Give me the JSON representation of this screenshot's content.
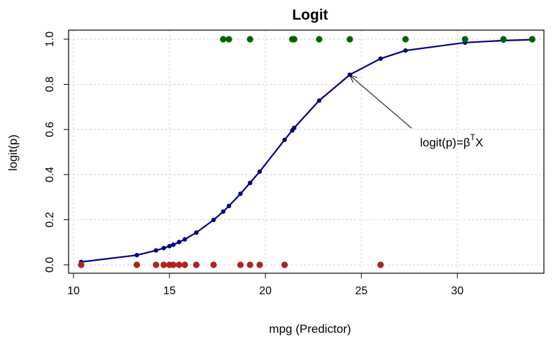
{
  "chart_data": {
    "type": "line",
    "title": "Logit",
    "xlabel": "mpg (Predictor)",
    "ylabel": "logit(p)",
    "xlim": [
      10,
      34
    ],
    "ylim": [
      0,
      1
    ],
    "x_ticks": [
      10,
      15,
      20,
      25,
      30
    ],
    "y_ticks": [
      0.0,
      0.2,
      0.4,
      0.6,
      0.8,
      1.0
    ],
    "x_tick_labels": [
      "10",
      "15",
      "20",
      "25",
      "30"
    ],
    "y_tick_labels": [
      "0.0",
      "0.2",
      "0.4",
      "0.6",
      "0.8",
      "1.0"
    ],
    "grid": true,
    "annotation": {
      "text_main": "logit(p)=β",
      "text_sup": "T",
      "text_tail": "X",
      "points_to": [
        24.4,
        0.84
      ]
    },
    "colors": {
      "curve": "#000080",
      "observed_1": "#006400",
      "observed_0": "#b22222",
      "grid": "#d3d3d3"
    },
    "series": [
      {
        "kind": "fitted-curve",
        "x": [
          10.4,
          13.3,
          14.3,
          14.7,
          15.0,
          15.2,
          15.5,
          15.8,
          16.4,
          17.3,
          17.8,
          18.1,
          18.7,
          19.2,
          19.7,
          21.0,
          21.4,
          21.5,
          22.8,
          24.4,
          26.0,
          27.3,
          30.4,
          32.4,
          33.9
        ],
        "y": [
          0.013,
          0.043,
          0.064,
          0.074,
          0.083,
          0.089,
          0.101,
          0.113,
          0.143,
          0.199,
          0.236,
          0.261,
          0.315,
          0.363,
          0.413,
          0.554,
          0.596,
          0.607,
          0.728,
          0.843,
          0.914,
          0.95,
          0.985,
          0.994,
          0.998
        ]
      },
      {
        "kind": "observed",
        "y_value": 1,
        "x": [
          17.8,
          18.1,
          19.2,
          21.4,
          21.5,
          22.8,
          24.4,
          27.3,
          30.4,
          32.4,
          33.9
        ]
      },
      {
        "kind": "observed",
        "y_value": 0,
        "x": [
          10.4,
          13.3,
          14.3,
          14.7,
          15.0,
          15.2,
          15.5,
          15.8,
          16.4,
          17.3,
          18.7,
          19.2,
          19.7,
          21.0,
          26.0
        ]
      }
    ]
  }
}
